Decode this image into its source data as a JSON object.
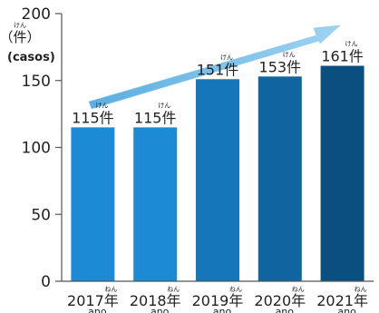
{
  "chart_data": {
    "type": "bar",
    "categories": [
      "2017年",
      "2018年",
      "2019年",
      "2020年",
      "2021年"
    ],
    "category_subtitles": [
      "ano",
      "ano",
      "ano",
      "ano",
      "ano"
    ],
    "category_furigana": [
      "ねん",
      "ねん",
      "ねん",
      "ねん",
      "ねん"
    ],
    "values": [
      115,
      115,
      151,
      153,
      161
    ],
    "value_labels": [
      "115件",
      "115件",
      "151件",
      "153件",
      "161件"
    ],
    "value_furigana": [
      "けん",
      "けん",
      "けん",
      "けん",
      "けん"
    ],
    "unit_label": "（件）",
    "unit_furigana": "けん",
    "unit_subtitle": "(casos)",
    "yticks": [
      0,
      50,
      100,
      150,
      200
    ],
    "ylim": [
      0,
      200
    ],
    "grid": false,
    "trend_arrow": true,
    "bar_colors": [
      "#1c8ad4",
      "#1c8ad4",
      "#1577ba",
      "#10649f",
      "#0b4f80"
    ],
    "arrow_color": "#86c5ea"
  }
}
